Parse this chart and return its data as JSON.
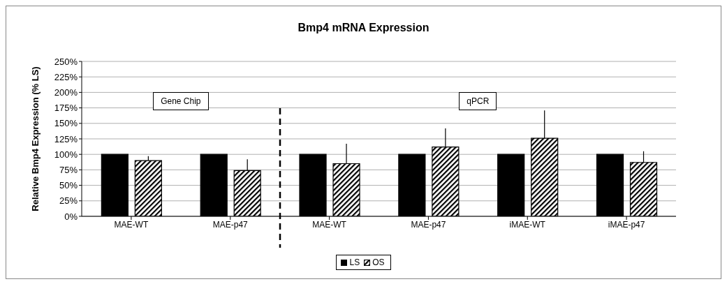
{
  "chart_data": {
    "type": "bar",
    "title": "Bmp4 mRNA Expression",
    "ylabel": "Relative Bmp4 Expression (% LS)",
    "categories": [
      "MAE-WT",
      "MAE-p47",
      "MAE-WT",
      "MAE-p47",
      "iMAE-WT",
      "iMAE-p47"
    ],
    "series": [
      {
        "name": "LS",
        "color": "#000000",
        "values": [
          100,
          100,
          100,
          100,
          100,
          100
        ]
      },
      {
        "name": "OS",
        "color": "#000000",
        "values": [
          90,
          74,
          85,
          112,
          126,
          87
        ],
        "errors": [
          [
            90,
            97
          ],
          [
            74,
            92
          ],
          [
            85,
            117
          ],
          [
            112,
            142
          ],
          [
            126,
            171
          ],
          [
            87,
            105
          ]
        ]
      }
    ],
    "ylim": [
      0,
      250
    ],
    "yticks": [
      {
        "value": 0,
        "label": "0%"
      },
      {
        "value": 25,
        "label": "25%"
      },
      {
        "value": 50,
        "label": "50%"
      },
      {
        "value": 75,
        "label": "75%"
      },
      {
        "value": 100,
        "label": "100%"
      },
      {
        "value": 125,
        "label": "125%"
      },
      {
        "value": 150,
        "label": "150%"
      },
      {
        "value": 175,
        "label": "175%"
      },
      {
        "value": 200,
        "label": "200%"
      },
      {
        "value": 225,
        "label": "225%"
      },
      {
        "value": 250,
        "label": "250%"
      }
    ],
    "grid": "y",
    "legend": "bottom",
    "annotations": [
      "Gene Chip",
      "qPCR"
    ]
  }
}
